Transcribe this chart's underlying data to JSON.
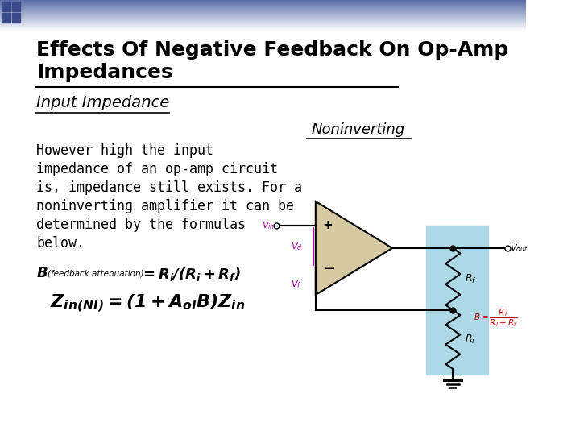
{
  "title_line1": "Effects Of Negative Feedback On Op-Amp",
  "title_line2": "Impedances",
  "subtitle": "Input Impedance",
  "noninverting_label": "Noninverting",
  "body_lines": [
    "However high the input",
    "impedance of an op-amp circuit",
    "is, impedance still exists. For a",
    "noninverting amplifier it can be",
    "determined by the formulas",
    "below."
  ],
  "bg_color": "#ffffff",
  "title_color": "#000000",
  "header_gradient_left": "#5b6ea8",
  "header_gradient_right": "#ffffff",
  "subtitle_color": "#000000",
  "body_color": "#000000",
  "noninverting_color": "#000000",
  "circuit_bg": "#add8e6",
  "opamp_fill": "#d4c9a0",
  "wire_color": "#000000",
  "magenta": "#aa00aa",
  "red": "#cc0000",
  "sq_color": "#3a4a8a"
}
